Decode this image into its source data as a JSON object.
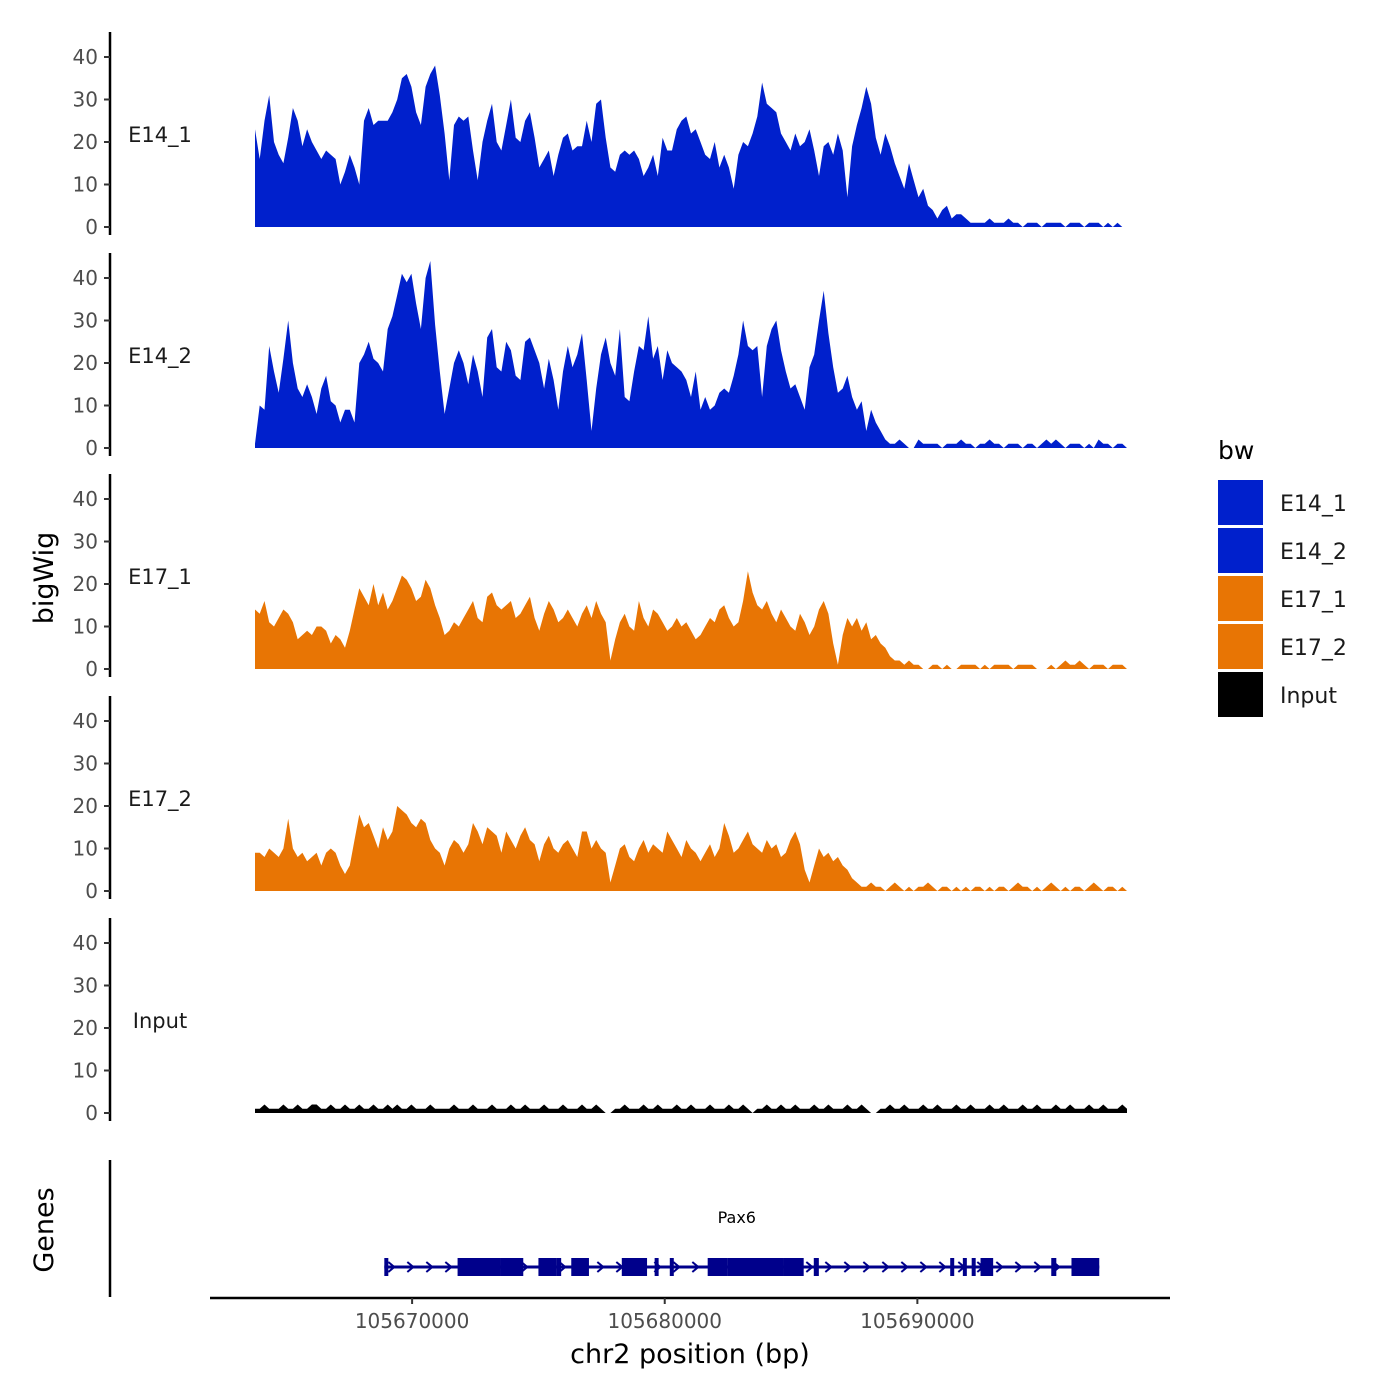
{
  "chart_data": {
    "type": "area",
    "y_axis_title": "bigWig",
    "x_axis_title": "chr2 position (bp)",
    "genes_axis_title": "Genes",
    "x_range": [
      105667000,
      105697000
    ],
    "x_axis_extent": [
      105662000,
      105700000
    ],
    "x_ticks": [
      105670000,
      105680000,
      105690000
    ],
    "x_tick_labels": [
      "105670000",
      "105680000",
      "105690000"
    ],
    "y_range": [
      0,
      45
    ],
    "y_ticks": [
      0,
      10,
      20,
      30,
      40
    ],
    "y_tick_labels": [
      "0",
      "10",
      "20",
      "30",
      "40"
    ],
    "legend": {
      "title": "bw",
      "entries": [
        {
          "name": "E14_1",
          "color": "#0020CC"
        },
        {
          "name": "E14_2",
          "color": "#0020CC"
        },
        {
          "name": "E17_1",
          "color": "#E87504"
        },
        {
          "name": "E17_2",
          "color": "#E87504"
        },
        {
          "name": "Input",
          "color": "#000000"
        }
      ]
    },
    "series": [
      {
        "name": "E14_1",
        "color": "#0020CC",
        "values": [
          23,
          16,
          25,
          31,
          20,
          17,
          15,
          21,
          28,
          25,
          19,
          23,
          20,
          18,
          16,
          18,
          17,
          16,
          10,
          13,
          17,
          14,
          10,
          25,
          28,
          24,
          25,
          25,
          25,
          27,
          30,
          35,
          36,
          33,
          27,
          24,
          33,
          36,
          38,
          31,
          22,
          11,
          24,
          26,
          25,
          26,
          18,
          11,
          20,
          25,
          29,
          20,
          18,
          24,
          30,
          21,
          20,
          25,
          27,
          21,
          14,
          16,
          18,
          12,
          17,
          21,
          22,
          18,
          19,
          19,
          25,
          20,
          29,
          30,
          21,
          14,
          13,
          17,
          18,
          17,
          18,
          16,
          12,
          14,
          17,
          12,
          21,
          18,
          18,
          23,
          25,
          26,
          22,
          23,
          20,
          17,
          16,
          20,
          14,
          17,
          14,
          9,
          17,
          20,
          19,
          22,
          26,
          34,
          29,
          28,
          27,
          22,
          20,
          18,
          22,
          19,
          20,
          23,
          18,
          12,
          19,
          20,
          17,
          22,
          18,
          7,
          19,
          24,
          28,
          33,
          29,
          21,
          17,
          22,
          19,
          15,
          12,
          9,
          15,
          11,
          7,
          9,
          5,
          4,
          2,
          4,
          5,
          2,
          3,
          3,
          2,
          1,
          1,
          1,
          1,
          2,
          1,
          1,
          1,
          2,
          1,
          1,
          0,
          1,
          1,
          1,
          0,
          1,
          1,
          1,
          1,
          0,
          1,
          1,
          1,
          0,
          1,
          1,
          1,
          0,
          1,
          0,
          1,
          0,
          0
        ]
      },
      {
        "name": "E14_2",
        "color": "#0020CC",
        "values": [
          1,
          10,
          9,
          24,
          18,
          13,
          21,
          30,
          20,
          14,
          12,
          15,
          12,
          8,
          14,
          17,
          11,
          10,
          6,
          9,
          9,
          6,
          20,
          22,
          25,
          21,
          20,
          18,
          28,
          31,
          36,
          41,
          39,
          41,
          34,
          28,
          40,
          44,
          29,
          18,
          8,
          14,
          20,
          23,
          20,
          15,
          22,
          18,
          12,
          26,
          28,
          19,
          18,
          25,
          23,
          17,
          16,
          25,
          26,
          23,
          20,
          14,
          21,
          16,
          9,
          18,
          24,
          19,
          22,
          27,
          16,
          4,
          14,
          22,
          26,
          20,
          17,
          28,
          12,
          11,
          18,
          24,
          23,
          31,
          21,
          24,
          16,
          23,
          20,
          19,
          18,
          16,
          12,
          18,
          9,
          12,
          9,
          10,
          13,
          14,
          13,
          17,
          22,
          30,
          24,
          23,
          24,
          12,
          24,
          28,
          30,
          23,
          18,
          14,
          15,
          12,
          9,
          19,
          22,
          30,
          37,
          27,
          19,
          13,
          14,
          17,
          12,
          9,
          11,
          4,
          9,
          6,
          4,
          2,
          1,
          1,
          2,
          1,
          0,
          0,
          2,
          1,
          1,
          1,
          1,
          0,
          1,
          1,
          1,
          2,
          1,
          1,
          0,
          1,
          1,
          2,
          1,
          1,
          0,
          1,
          1,
          1,
          0,
          1,
          1,
          0,
          1,
          2,
          1,
          2,
          1,
          0,
          1,
          1,
          1,
          0,
          1,
          0,
          2,
          1,
          1,
          0,
          1,
          1,
          0
        ]
      },
      {
        "name": "E17_1",
        "color": "#E87504",
        "values": [
          14,
          13,
          16,
          11,
          10,
          12,
          14,
          13,
          11,
          7,
          8,
          9,
          8,
          10,
          10,
          9,
          6,
          8,
          7,
          5,
          9,
          14,
          19,
          17,
          15,
          20,
          15,
          18,
          14,
          16,
          19,
          22,
          21,
          19,
          16,
          17,
          21,
          19,
          15,
          12,
          8,
          9,
          11,
          10,
          12,
          14,
          16,
          12,
          11,
          17,
          18,
          15,
          14,
          15,
          16,
          12,
          13,
          15,
          17,
          12,
          9,
          13,
          16,
          14,
          11,
          12,
          14,
          12,
          10,
          13,
          15,
          12,
          16,
          13,
          11,
          2,
          7,
          11,
          13,
          10,
          9,
          16,
          12,
          10,
          14,
          13,
          11,
          9,
          10,
          12,
          10,
          11,
          9,
          7,
          8,
          10,
          12,
          11,
          14,
          15,
          12,
          10,
          11,
          16,
          23,
          18,
          15,
          14,
          16,
          13,
          11,
          14,
          12,
          10,
          9,
          13,
          11,
          8,
          10,
          14,
          16,
          13,
          6,
          1,
          8,
          12,
          10,
          12,
          9,
          11,
          7,
          8,
          6,
          5,
          3,
          2,
          2,
          1,
          2,
          1,
          1,
          0,
          0,
          1,
          1,
          0,
          1,
          0,
          0,
          1,
          1,
          1,
          1,
          0,
          1,
          0,
          1,
          1,
          1,
          1,
          0,
          1,
          1,
          1,
          1,
          0,
          0,
          0,
          1,
          0,
          1,
          2,
          1,
          1,
          2,
          1,
          0,
          1,
          1,
          1,
          0,
          1,
          1,
          1,
          0
        ]
      },
      {
        "name": "E17_2",
        "color": "#E87504",
        "values": [
          9,
          9,
          8,
          10,
          9,
          8,
          10,
          17,
          10,
          8,
          9,
          7,
          8,
          9,
          6,
          9,
          10,
          9,
          6,
          4,
          6,
          12,
          18,
          15,
          16,
          13,
          10,
          15,
          12,
          14,
          20,
          19,
          18,
          16,
          15,
          17,
          16,
          12,
          10,
          9,
          6,
          10,
          12,
          11,
          9,
          11,
          16,
          14,
          11,
          15,
          14,
          13,
          9,
          14,
          12,
          10,
          13,
          15,
          12,
          11,
          7,
          11,
          13,
          10,
          9,
          11,
          12,
          10,
          8,
          14,
          14,
          10,
          12,
          10,
          9,
          2,
          6,
          10,
          11,
          8,
          7,
          10,
          12,
          9,
          11,
          10,
          9,
          14,
          12,
          10,
          8,
          12,
          10,
          9,
          7,
          9,
          11,
          8,
          10,
          16,
          13,
          9,
          10,
          12,
          14,
          11,
          10,
          9,
          12,
          10,
          11,
          8,
          9,
          12,
          14,
          11,
          5,
          2,
          6,
          10,
          8,
          9,
          7,
          8,
          6,
          5,
          3,
          2,
          1,
          1,
          2,
          1,
          1,
          0,
          1,
          2,
          1,
          0,
          1,
          0,
          1,
          1,
          2,
          1,
          0,
          1,
          1,
          0,
          1,
          0,
          1,
          0,
          1,
          1,
          0,
          1,
          0,
          1,
          1,
          0,
          1,
          2,
          1,
          1,
          0,
          1,
          0,
          1,
          2,
          1,
          0,
          1,
          0,
          1,
          1,
          0,
          1,
          2,
          1,
          0,
          1,
          1,
          0,
          1,
          0
        ]
      },
      {
        "name": "Input",
        "color": "#000000",
        "values": [
          1,
          1,
          2,
          1,
          1,
          1,
          2,
          1,
          1,
          2,
          1,
          1,
          2,
          2,
          1,
          1,
          2,
          1,
          1,
          2,
          1,
          1,
          2,
          1,
          1,
          2,
          1,
          1,
          2,
          1,
          2,
          1,
          1,
          2,
          1,
          1,
          1,
          2,
          1,
          1,
          1,
          1,
          2,
          1,
          1,
          1,
          2,
          1,
          1,
          1,
          2,
          1,
          1,
          1,
          2,
          1,
          1,
          2,
          1,
          1,
          1,
          2,
          1,
          1,
          1,
          2,
          1,
          1,
          1,
          2,
          1,
          1,
          2,
          1,
          0,
          0,
          1,
          1,
          2,
          1,
          1,
          1,
          2,
          1,
          1,
          2,
          1,
          1,
          1,
          2,
          1,
          1,
          2,
          1,
          1,
          1,
          2,
          1,
          1,
          1,
          2,
          1,
          1,
          2,
          1,
          0,
          1,
          1,
          2,
          1,
          1,
          2,
          1,
          1,
          2,
          1,
          1,
          1,
          2,
          1,
          1,
          2,
          1,
          1,
          1,
          2,
          1,
          1,
          2,
          1,
          0,
          0,
          1,
          1,
          2,
          1,
          1,
          2,
          1,
          1,
          1,
          2,
          1,
          1,
          2,
          1,
          1,
          1,
          2,
          1,
          1,
          2,
          1,
          1,
          1,
          2,
          1,
          1,
          2,
          1,
          1,
          1,
          2,
          1,
          1,
          2,
          1,
          1,
          1,
          2,
          1,
          1,
          2,
          1,
          1,
          1,
          2,
          1,
          1,
          2,
          1,
          1,
          1,
          2,
          1
        ]
      }
    ],
    "genes": [
      {
        "name": "Pax6",
        "color": "#00008B",
        "start": 105668900,
        "end": 105697200,
        "strand": "+",
        "exons": [
          [
            105668900,
            105669050
          ],
          [
            105671800,
            105673500
          ],
          [
            105673500,
            105674400
          ],
          [
            105675000,
            105675700
          ],
          [
            105675700,
            105675900
          ],
          [
            105676300,
            105677000
          ],
          [
            105678300,
            105679300
          ],
          [
            105679600,
            105679750
          ],
          [
            105680200,
            105680300
          ],
          [
            105681700,
            105682500
          ],
          [
            105682500,
            105684700
          ],
          [
            105684700,
            105685500
          ],
          [
            105685900,
            105686100
          ],
          [
            105691300,
            105691450
          ],
          [
            105691800,
            105691950
          ],
          [
            105692150,
            105692300
          ],
          [
            105692500,
            105693000
          ],
          [
            105695300,
            105695500
          ],
          [
            105696100,
            105697200
          ]
        ]
      }
    ]
  }
}
